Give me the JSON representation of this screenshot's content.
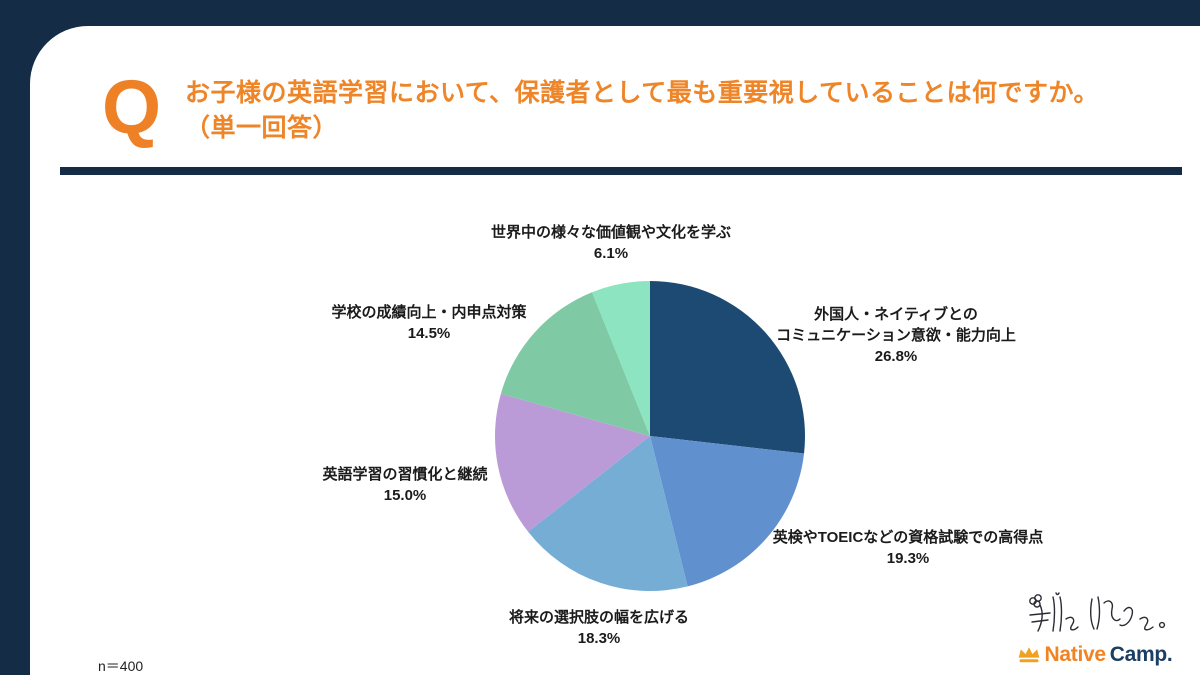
{
  "page": {
    "q_mark": "Q",
    "title_line1": "お子様の英語学習において、保護者として最も重要視していることは何ですか。",
    "title_line2": "（単一回答）",
    "sample_size": "n＝400"
  },
  "chart_data": {
    "type": "pie",
    "title": "お子様の英語学習において、保護者として最も重要視していることは何ですか。（単一回答）",
    "start_angle_deg": -90,
    "direction": "clockwise",
    "segments": [
      {
        "label": "外国人・ネイティブとのコミュニケーション意欲・能力向上",
        "value": 26.8,
        "color": "#1d4a72"
      },
      {
        "label": "英検やTOEICなどの資格試験での高得点",
        "value": 19.3,
        "color": "#6190ce"
      },
      {
        "label": "将来の選択肢の幅を広げる",
        "value": 18.3,
        "color": "#76add4"
      },
      {
        "label": "英語学習の習慣化と継続",
        "value": 15.0,
        "color": "#ba9bd7"
      },
      {
        "label": "学校の成績向上・内申点対策",
        "value": 14.5,
        "color": "#80c9a5"
      },
      {
        "label": "世界中の様々な価値観や文化を学ぶ",
        "value": 6.1,
        "color": "#8ce4c0"
      }
    ]
  },
  "callouts": [
    {
      "line1": "世界中の様々な価値観や文化を学ぶ",
      "pct": "6.1%"
    },
    {
      "line1": "外国人・ネイティブとの",
      "line2": "コミュニケーション意欲・能力向上",
      "pct": "26.8%"
    },
    {
      "line1": "英検やTOEICなどの資格試験での高得点",
      "pct": "19.3%"
    },
    {
      "line1": "将来の選択肢の幅を広げる",
      "pct": "18.3%"
    },
    {
      "line1": "英語学習の習慣化と継続",
      "pct": "15.0%"
    },
    {
      "line1": "学校の成績向上・内申点対策",
      "pct": "14.5%"
    }
  ],
  "footer": {
    "handwritten_logo_text": "僕と私と",
    "brand_native": "Native",
    "brand_camp": "Camp."
  },
  "colors": {
    "background_navy": "#142c46",
    "card_white": "#ffffff",
    "accent_orange": "#ee8528",
    "label_text": "#1b1b1b",
    "brand_orange": "#f08322",
    "brand_navy": "#1c3e63"
  }
}
